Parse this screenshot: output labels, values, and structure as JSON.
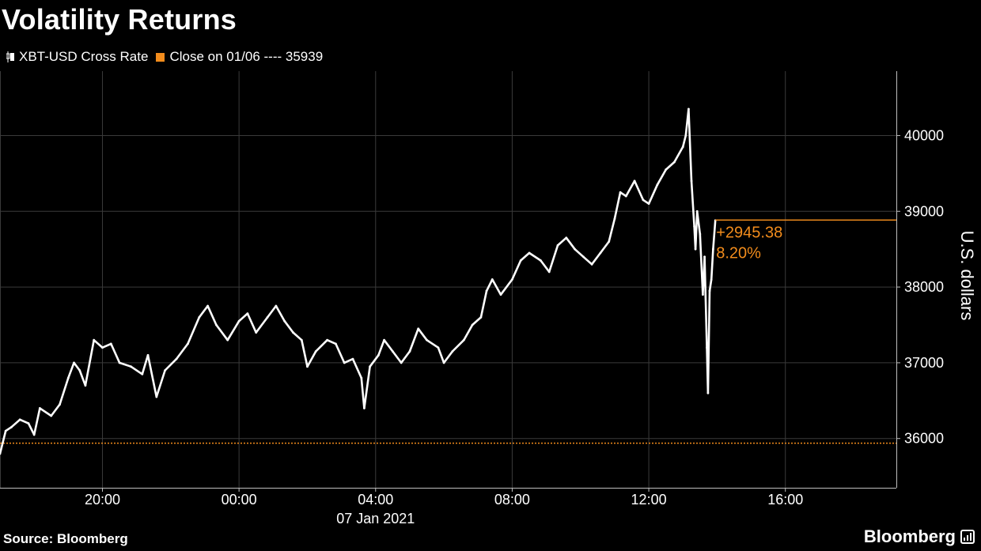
{
  "chart_data": {
    "type": "line",
    "title": "Volatility Returns",
    "ylabel": "U.S. dollars",
    "ylim": [
      35350,
      40850
    ],
    "yticks": [
      36000,
      37000,
      38000,
      39000,
      40000
    ],
    "ytick_labels": [
      "36000",
      "37000",
      "38000",
      "39000",
      "40000"
    ],
    "xlim": [
      "2021-01-06 17:00",
      "2021-01-07 19:15"
    ],
    "xticks": [
      "2021-01-06 20:00",
      "2021-01-07 00:00",
      "2021-01-07 04:00",
      "2021-01-07 08:00",
      "2021-01-07 12:00",
      "2021-01-07 16:00"
    ],
    "xtick_labels": [
      "20:00",
      "00:00",
      "04:00",
      "08:00",
      "12:00",
      "16:00"
    ],
    "date_label": "07 Jan 2021",
    "grid": true,
    "legend_position": "top-left",
    "series": [
      {
        "name": "XBT-USD Cross Rate",
        "color": "#ffffff",
        "points": [
          [
            "2021-01-06 17:00",
            35800
          ],
          [
            "2021-01-06 17:10",
            36100
          ],
          [
            "2021-01-06 17:20",
            36150
          ],
          [
            "2021-01-06 17:35",
            36250
          ],
          [
            "2021-01-06 17:50",
            36200
          ],
          [
            "2021-01-06 18:00",
            36050
          ],
          [
            "2021-01-06 18:10",
            36400
          ],
          [
            "2021-01-06 18:30",
            36300
          ],
          [
            "2021-01-06 18:45",
            36450
          ],
          [
            "2021-01-06 19:00",
            36800
          ],
          [
            "2021-01-06 19:10",
            37000
          ],
          [
            "2021-01-06 19:20",
            36900
          ],
          [
            "2021-01-06 19:30",
            36700
          ],
          [
            "2021-01-06 19:45",
            37300
          ],
          [
            "2021-01-06 20:00",
            37200
          ],
          [
            "2021-01-06 20:15",
            37250
          ],
          [
            "2021-01-06 20:30",
            37000
          ],
          [
            "2021-01-06 20:50",
            36950
          ],
          [
            "2021-01-06 21:10",
            36850
          ],
          [
            "2021-01-06 21:20",
            37100
          ],
          [
            "2021-01-06 21:35",
            36550
          ],
          [
            "2021-01-06 21:50",
            36900
          ],
          [
            "2021-01-06 22:10",
            37050
          ],
          [
            "2021-01-06 22:30",
            37250
          ],
          [
            "2021-01-06 22:50",
            37600
          ],
          [
            "2021-01-06 23:05",
            37750
          ],
          [
            "2021-01-06 23:20",
            37500
          ],
          [
            "2021-01-06 23:40",
            37300
          ],
          [
            "2021-01-07 00:00",
            37550
          ],
          [
            "2021-01-07 00:15",
            37650
          ],
          [
            "2021-01-07 00:30",
            37400
          ],
          [
            "2021-01-07 00:50",
            37600
          ],
          [
            "2021-01-07 01:05",
            37750
          ],
          [
            "2021-01-07 01:20",
            37550
          ],
          [
            "2021-01-07 01:35",
            37400
          ],
          [
            "2021-01-07 01:50",
            37300
          ],
          [
            "2021-01-07 02:00",
            36950
          ],
          [
            "2021-01-07 02:15",
            37150
          ],
          [
            "2021-01-07 02:35",
            37300
          ],
          [
            "2021-01-07 02:50",
            37250
          ],
          [
            "2021-01-07 03:05",
            37000
          ],
          [
            "2021-01-07 03:20",
            37050
          ],
          [
            "2021-01-07 03:35",
            36800
          ],
          [
            "2021-01-07 03:40",
            36400
          ],
          [
            "2021-01-07 03:50",
            36950
          ],
          [
            "2021-01-07 04:05",
            37100
          ],
          [
            "2021-01-07 04:15",
            37300
          ],
          [
            "2021-01-07 04:30",
            37150
          ],
          [
            "2021-01-07 04:45",
            37000
          ],
          [
            "2021-01-07 05:00",
            37150
          ],
          [
            "2021-01-07 05:15",
            37450
          ],
          [
            "2021-01-07 05:30",
            37300
          ],
          [
            "2021-01-07 05:50",
            37200
          ],
          [
            "2021-01-07 06:00",
            37000
          ],
          [
            "2021-01-07 06:15",
            37150
          ],
          [
            "2021-01-07 06:35",
            37300
          ],
          [
            "2021-01-07 06:50",
            37500
          ],
          [
            "2021-01-07 07:05",
            37600
          ],
          [
            "2021-01-07 07:15",
            37950
          ],
          [
            "2021-01-07 07:25",
            38100
          ],
          [
            "2021-01-07 07:40",
            37900
          ],
          [
            "2021-01-07 08:00",
            38100
          ],
          [
            "2021-01-07 08:15",
            38350
          ],
          [
            "2021-01-07 08:30",
            38450
          ],
          [
            "2021-01-07 08:50",
            38350
          ],
          [
            "2021-01-07 09:05",
            38200
          ],
          [
            "2021-01-07 09:20",
            38550
          ],
          [
            "2021-01-07 09:35",
            38650
          ],
          [
            "2021-01-07 09:50",
            38500
          ],
          [
            "2021-01-07 10:05",
            38400
          ],
          [
            "2021-01-07 10:20",
            38300
          ],
          [
            "2021-01-07 10:35",
            38450
          ],
          [
            "2021-01-07 10:50",
            38600
          ],
          [
            "2021-01-07 11:00",
            38900
          ],
          [
            "2021-01-07 11:10",
            39250
          ],
          [
            "2021-01-07 11:20",
            39200
          ],
          [
            "2021-01-07 11:35",
            39400
          ],
          [
            "2021-01-07 11:50",
            39150
          ],
          [
            "2021-01-07 12:00",
            39100
          ],
          [
            "2021-01-07 12:15",
            39350
          ],
          [
            "2021-01-07 12:30",
            39550
          ],
          [
            "2021-01-07 12:45",
            39650
          ],
          [
            "2021-01-07 13:00",
            39850
          ],
          [
            "2021-01-07 13:05",
            40000
          ],
          [
            "2021-01-07 13:10",
            40350
          ],
          [
            "2021-01-07 13:15",
            39400
          ],
          [
            "2021-01-07 13:20",
            38800
          ],
          [
            "2021-01-07 13:22",
            38500
          ],
          [
            "2021-01-07 13:25",
            39000
          ],
          [
            "2021-01-07 13:30",
            38700
          ],
          [
            "2021-01-07 13:35",
            37900
          ],
          [
            "2021-01-07 13:38",
            38400
          ],
          [
            "2021-01-07 13:42",
            37200
          ],
          [
            "2021-01-07 13:44",
            36600
          ],
          [
            "2021-01-07 13:47",
            37950
          ],
          [
            "2021-01-07 13:50",
            38100
          ],
          [
            "2021-01-07 13:53",
            38500
          ],
          [
            "2021-01-07 13:57",
            38880
          ]
        ]
      },
      {
        "name": "Close on 01/06 ---- 35939",
        "color": "#f28c1c",
        "value": 35939
      }
    ],
    "annotation": {
      "change": "+2945.38",
      "change_pct": "8.20%",
      "level": 38884,
      "color": "#f28c1c"
    }
  },
  "footer": {
    "source": "Source: Bloomberg",
    "brand": "Bloomberg"
  }
}
